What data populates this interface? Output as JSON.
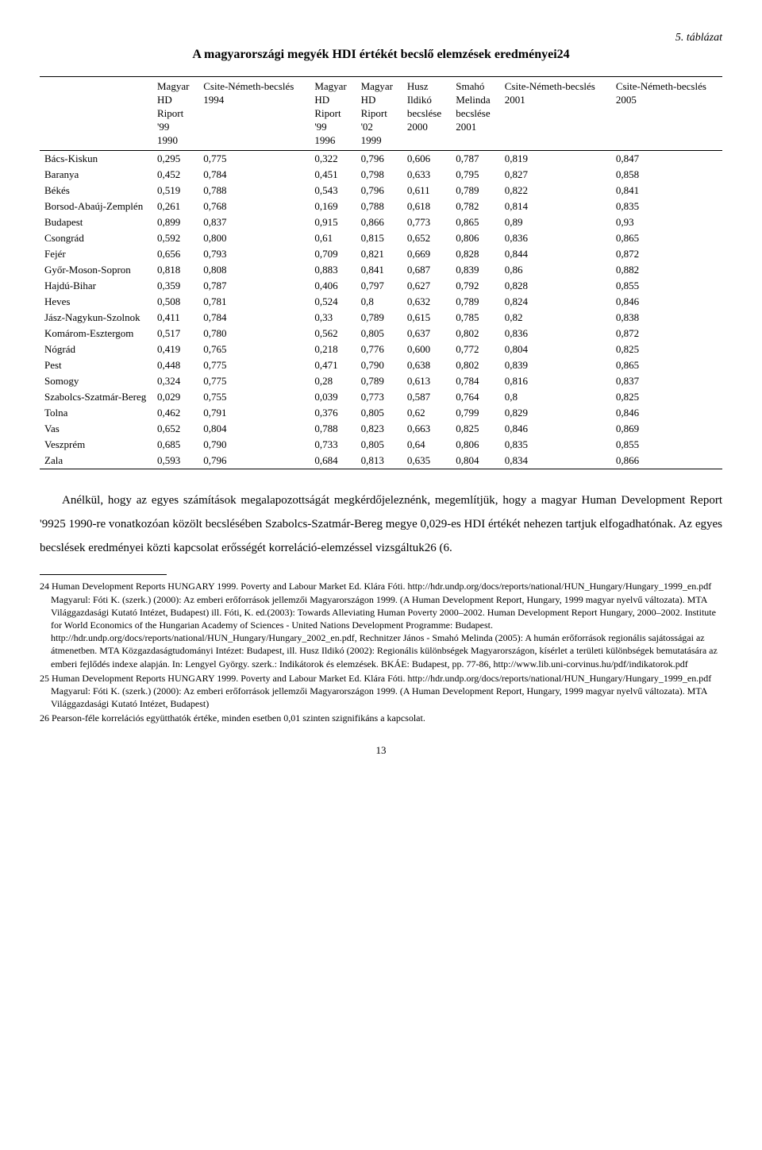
{
  "tableNumber": "5. táblázat",
  "tableTitle": "A magyarországi megyék HDI értékét becslő elemzések eredményei24",
  "columns": [
    "",
    "Magyar HD Riport '99 1990",
    "Csite-Németh-becslés 1994",
    "Magyar HD Riport '99 1996",
    "Magyar HD Riport '02 1999",
    "Husz Ildikó becslése 2000",
    "Smahó Melinda becslése 2001",
    "Csite-Németh-becslés 2001",
    "Csite-Németh-becslés 2005"
  ],
  "rows": [
    [
      "Bács-Kiskun",
      "0,295",
      "0,775",
      "0,322",
      "0,796",
      "0,606",
      "0,787",
      "0,819",
      "0,847"
    ],
    [
      "Baranya",
      "0,452",
      "0,784",
      "0,451",
      "0,798",
      "0,633",
      "0,795",
      "0,827",
      "0,858"
    ],
    [
      "Békés",
      "0,519",
      "0,788",
      "0,543",
      "0,796",
      "0,611",
      "0,789",
      "0,822",
      "0,841"
    ],
    [
      "Borsod-Abaúj-Zemplén",
      "0,261",
      "0,768",
      "0,169",
      "0,788",
      "0,618",
      "0,782",
      "0,814",
      "0,835"
    ],
    [
      "Budapest",
      "0,899",
      "0,837",
      "0,915",
      "0,866",
      "0,773",
      "0,865",
      "0,89",
      "0,93"
    ],
    [
      "Csongrád",
      "0,592",
      "0,800",
      "0,61",
      "0,815",
      "0,652",
      "0,806",
      "0,836",
      "0,865"
    ],
    [
      "Fejér",
      "0,656",
      "0,793",
      "0,709",
      "0,821",
      "0,669",
      "0,828",
      "0,844",
      "0,872"
    ],
    [
      "Győr-Moson-Sopron",
      "0,818",
      "0,808",
      "0,883",
      "0,841",
      "0,687",
      "0,839",
      "0,86",
      "0,882"
    ],
    [
      "Hajdú-Bihar",
      "0,359",
      "0,787",
      "0,406",
      "0,797",
      "0,627",
      "0,792",
      "0,828",
      "0,855"
    ],
    [
      "Heves",
      "0,508",
      "0,781",
      "0,524",
      "0,8",
      "0,632",
      "0,789",
      "0,824",
      "0,846"
    ],
    [
      "Jász-Nagykun-Szolnok",
      "0,411",
      "0,784",
      "0,33",
      "0,789",
      "0,615",
      "0,785",
      "0,82",
      "0,838"
    ],
    [
      "Komárom-Esztergom",
      "0,517",
      "0,780",
      "0,562",
      "0,805",
      "0,637",
      "0,802",
      "0,836",
      "0,872"
    ],
    [
      "Nógrád",
      "0,419",
      "0,765",
      "0,218",
      "0,776",
      "0,600",
      "0,772",
      "0,804",
      "0,825"
    ],
    [
      "Pest",
      "0,448",
      "0,775",
      "0,471",
      "0,790",
      "0,638",
      "0,802",
      "0,839",
      "0,865"
    ],
    [
      "Somogy",
      "0,324",
      "0,775",
      "0,28",
      "0,789",
      "0,613",
      "0,784",
      "0,816",
      "0,837"
    ],
    [
      "Szabolcs-Szatmár-Bereg",
      "0,029",
      "0,755",
      "0,039",
      "0,773",
      "0,587",
      "0,764",
      "0,8",
      "0,825"
    ],
    [
      "Tolna",
      "0,462",
      "0,791",
      "0,376",
      "0,805",
      "0,62",
      "0,799",
      "0,829",
      "0,846"
    ],
    [
      "Vas",
      "0,652",
      "0,804",
      "0,788",
      "0,823",
      "0,663",
      "0,825",
      "0,846",
      "0,869"
    ],
    [
      "Veszprém",
      "0,685",
      "0,790",
      "0,733",
      "0,805",
      "0,64",
      "0,806",
      "0,835",
      "0,855"
    ],
    [
      "Zala",
      "0,593",
      "0,796",
      "0,684",
      "0,813",
      "0,635",
      "0,804",
      "0,834",
      "0,866"
    ]
  ],
  "bodyText": "Anélkül, hogy az egyes számítások megalapozottságát megkérdőjeleznénk, megemlítjük, hogy a magyar Human Development Report '9925 1990-re vonatkozóan közölt becslésében Szabolcs-Szatmár-Bereg megye 0,029-es HDI értékét nehezen tartjuk elfogadhatónak. Az egyes becslések eredményei közti kapcsolat erősségét korreláció-elemzéssel vizsgáltuk26 (6.",
  "footnotes": [
    "24 Human Development Reports HUNGARY 1999. Poverty and Labour Market  Ed. Klára Fóti. http://hdr.undp.org/docs/reports/national/HUN_Hungary/Hungary_1999_en.pdf Magyarul: Fóti K. (szerk.) (2000): Az emberi erőforrások jellemzői Magyarországon 1999. (A Human Development Report, Hungary, 1999 magyar nyelvű változata). MTA Világgazdasági Kutató Intézet, Budapest) ill. Fóti, K. ed.(2003): Towards Alleviating Human Poverty 2000–2002. Human Development Report Hungary, 2000–2002. Institute for World Economics of the Hungarian Academy of Sciences - United Nations Development Programme: Budapest.  http://hdr.undp.org/docs/reports/national/HUN_Hungary/Hungary_2002_en.pdf, Rechnitzer János - Smahó Melinda (2005): A humán erőforrások regionális sajátosságai az átmenetben. MTA Közgazdaságtudományi Intézet: Budapest, ill. Husz Ildikó (2002): Regionális különbségek Magyarországon, kísérlet a területi különbségek bemutatására az emberi fejlődés indexe alapján. In: Lengyel György. szerk.: Indikátorok és elemzések. BKÁE: Budapest, pp. 77-86, http://www.lib.uni-corvinus.hu/pdf/indikatorok.pdf",
    "25 Human Development Reports HUNGARY 1999. Poverty and Labour Market  Ed. Klára Fóti. http://hdr.undp.org/docs/reports/national/HUN_Hungary/Hungary_1999_en.pdf Magyarul: Fóti K. (szerk.) (2000): Az emberi erőforrások jellemzői Magyarországon 1999. (A Human Development Report, Hungary, 1999 magyar nyelvű változata). MTA Világgazdasági Kutató Intézet, Budapest)",
    "26 Pearson-féle korrelációs együtthatók értéke, minden esetben 0,01 szinten szignifikáns a kapcsolat."
  ],
  "pageNumber": "13"
}
